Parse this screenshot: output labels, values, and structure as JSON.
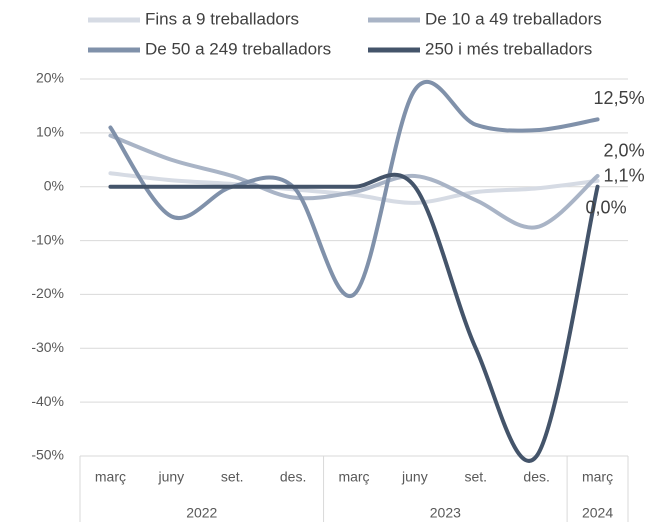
{
  "chart_data": {
    "type": "line",
    "groups": [
      {
        "label": "2022",
        "categories": [
          "març",
          "juny",
          "set.",
          "des."
        ]
      },
      {
        "label": "2023",
        "categories": [
          "març",
          "juny",
          "set.",
          "des."
        ]
      },
      {
        "label": "2024",
        "categories": [
          "març"
        ]
      }
    ],
    "series": [
      {
        "name": "Fins a 9 treballadors",
        "color": "#d6dbe4",
        "values": [
          2.5,
          1.2,
          0.5,
          -0.5,
          -1.5,
          -3,
          -1,
          -0.3,
          1.1
        ],
        "value_labels": [
          null,
          null,
          null,
          null,
          null,
          null,
          null,
          null,
          "1,1%"
        ]
      },
      {
        "name": "De 10 a 49 treballadors",
        "color": "#a9b4c6",
        "values": [
          9.5,
          5,
          2,
          -2,
          -1,
          2,
          -2.5,
          -7.5,
          2.0
        ],
        "value_labels": [
          null,
          null,
          null,
          null,
          null,
          null,
          null,
          null,
          "2,0%"
        ]
      },
      {
        "name": "De 50 a 249 treballadors",
        "color": "#8091aa",
        "values": [
          11,
          -5.5,
          0,
          0,
          -20,
          18,
          11.5,
          10.5,
          12.5
        ],
        "value_labels": [
          null,
          null,
          null,
          null,
          null,
          null,
          null,
          null,
          "12,5%"
        ]
      },
      {
        "name": "250 i més treballadors",
        "color": "#44546a",
        "values": [
          0,
          0,
          0,
          0,
          0,
          0,
          -30,
          -50,
          0
        ],
        "value_labels": [
          null,
          null,
          null,
          null,
          null,
          null,
          null,
          null,
          "0,0%"
        ]
      }
    ],
    "ylim": [
      -50,
      20
    ],
    "yticks": [
      {
        "value": -50,
        "label": "-50%"
      },
      {
        "value": -40,
        "label": "-40%"
      },
      {
        "value": -30,
        "label": "-30%"
      },
      {
        "value": -20,
        "label": "-20%"
      },
      {
        "value": -10,
        "label": "-10%"
      },
      {
        "value": 0,
        "label": "0%"
      },
      {
        "value": 10,
        "label": "10%"
      },
      {
        "value": 20,
        "label": "20%"
      }
    ],
    "grid": true,
    "legend": "top"
  }
}
